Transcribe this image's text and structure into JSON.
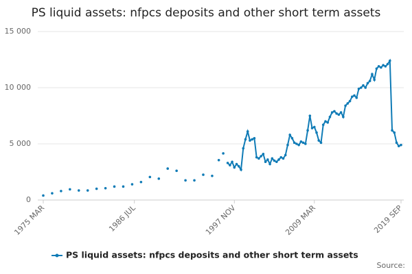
{
  "chart_data": {
    "type": "line",
    "title": "PS liquid assets: nfpcs deposits and other short term assets",
    "source": "Source:",
    "categories": [
      "1975 MAR",
      null,
      null,
      null,
      null,
      null,
      null,
      null,
      null,
      null,
      null,
      null,
      null,
      null,
      null,
      null,
      null,
      null,
      null,
      null,
      null,
      null,
      null,
      null,
      null,
      null,
      null,
      null,
      null,
      null,
      null,
      null,
      null,
      null,
      null,
      null,
      null,
      null,
      null,
      null,
      null,
      "1986 JUL",
      null,
      null,
      null,
      null,
      null,
      null,
      null,
      null,
      null,
      null,
      null,
      null,
      null,
      null,
      null,
      null,
      null,
      null,
      null,
      null,
      null,
      null,
      null,
      null,
      null,
      null,
      null,
      null,
      null,
      null,
      null,
      null,
      null,
      null,
      null,
      null,
      null,
      null,
      null,
      null,
      null,
      null,
      null,
      null,
      "1997 NOV",
      null,
      null,
      null,
      null,
      null,
      null,
      null,
      null,
      null,
      null,
      null,
      null,
      null,
      null,
      null,
      null,
      null,
      null,
      null,
      null,
      null,
      null,
      null,
      null,
      null,
      null,
      null,
      null,
      null,
      null,
      null,
      null,
      null,
      null,
      null,
      "2009 MAR",
      null,
      null,
      null,
      null,
      null,
      null,
      null,
      null,
      null,
      null,
      null,
      null,
      null,
      null,
      null,
      null,
      null,
      null,
      null,
      null,
      null,
      null,
      null,
      null,
      null,
      null,
      null,
      null,
      null,
      null,
      null,
      null,
      null,
      null,
      null,
      null,
      null,
      null,
      "2019 SEP"
    ],
    "series": [
      {
        "name": "PS liquid assets: nfpcs deposits and other short term assets",
        "color": "#0f7bb6",
        "values": [
          400,
          null,
          null,
          null,
          600,
          null,
          null,
          null,
          800,
          null,
          null,
          null,
          950,
          null,
          null,
          null,
          850,
          null,
          null,
          null,
          850,
          null,
          null,
          null,
          1000,
          null,
          null,
          null,
          1050,
          null,
          null,
          null,
          1200,
          null,
          null,
          null,
          1200,
          null,
          null,
          null,
          1400,
          null,
          null,
          null,
          1600,
          null,
          null,
          null,
          2050,
          null,
          null,
          null,
          1900,
          null,
          null,
          null,
          2800,
          null,
          null,
          null,
          2600,
          null,
          null,
          null,
          1750,
          null,
          null,
          null,
          1750,
          null,
          null,
          null,
          2250,
          null,
          null,
          null,
          2150,
          null,
          null,
          3550,
          null,
          4150,
          null,
          3300,
          3100,
          3400,
          2900,
          3200,
          3000,
          2700,
          4600,
          5400,
          6100,
          5300,
          5400,
          5500,
          3800,
          3700,
          3900,
          4100,
          3400,
          3600,
          3200,
          3700,
          3500,
          3400,
          3600,
          3800,
          3700,
          4000,
          4900,
          5800,
          5500,
          5100,
          5000,
          4900,
          5200,
          5100,
          5000,
          6200,
          7500,
          6400,
          6500,
          6000,
          5300,
          5100,
          6700,
          7000,
          6900,
          7400,
          7800,
          7900,
          7700,
          7600,
          7800,
          7400,
          8400,
          8600,
          8800,
          9200,
          9300,
          9100,
          9900,
          10000,
          10200,
          10000,
          10400,
          10600,
          11200,
          10700,
          11700,
          11900,
          11800,
          12000,
          11900,
          12100,
          12400,
          6200,
          6000,
          5100,
          4800,
          4900
        ]
      }
    ],
    "ylim": [
      0,
      15000
    ],
    "yticks": [
      0,
      {
        "value": 5000,
        "label": "5 000"
      },
      {
        "value": 10000,
        "label": "10 000"
      },
      {
        "value": 15000,
        "label": "15 000"
      }
    ],
    "grid": true
  }
}
